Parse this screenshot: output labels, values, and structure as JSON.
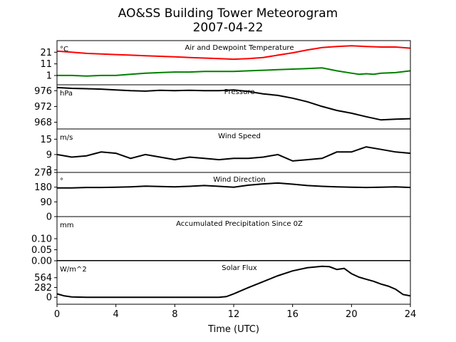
{
  "figure": {
    "title_line1": "AO&SS Building Tower Meteorogram",
    "title_line2": "2007-04-22",
    "xlabel": "Time (UTC)"
  },
  "chart_data": [
    {
      "type": "line",
      "title": "Air and Dewpoint Temperature",
      "unit": "°C",
      "ylim": [
        -7,
        31
      ],
      "yticks": [
        "1",
        "11",
        "21"
      ],
      "xlim": [
        0,
        24
      ],
      "series": [
        {
          "color": "#ff0000",
          "x": [
            0,
            1,
            2,
            3,
            4,
            5,
            6,
            7,
            8,
            9,
            10,
            11,
            12,
            13,
            14,
            15,
            16,
            17,
            18,
            19,
            20,
            21,
            22,
            23,
            24
          ],
          "y": [
            22,
            21,
            20,
            19.5,
            19,
            18.5,
            18,
            17.5,
            17,
            16.5,
            16,
            15.5,
            15,
            15.5,
            16.5,
            18.5,
            20.5,
            23,
            25,
            26,
            26.5,
            26,
            25.5,
            25.5,
            24.5
          ]
        },
        {
          "color": "#008000",
          "x": [
            0,
            1,
            2,
            3,
            4,
            5,
            6,
            7,
            8,
            9,
            10,
            11,
            12,
            13,
            14,
            15,
            16,
            17,
            18,
            19,
            20,
            20.5,
            21,
            21.5,
            22,
            23,
            24
          ],
          "y": [
            1,
            1,
            0.5,
            1,
            1,
            2,
            3,
            3.5,
            4,
            4,
            4.5,
            4.5,
            4.5,
            5,
            5.5,
            6,
            6.5,
            7,
            7.5,
            5,
            3,
            2,
            2.5,
            2,
            3,
            3.5,
            5
          ]
        }
      ]
    },
    {
      "type": "line",
      "title": "Pressure",
      "unit": "hPa",
      "ylim": [
        966.3,
        977.5
      ],
      "yticks": [
        "968",
        "972",
        "976"
      ],
      "xlim": [
        0,
        24
      ],
      "series": [
        {
          "color": "#000000",
          "x": [
            0,
            1,
            2,
            3,
            4,
            5,
            6,
            7,
            8,
            9,
            10,
            11,
            12,
            13,
            14,
            15,
            16,
            17,
            18,
            19,
            20,
            21,
            22,
            23,
            24
          ],
          "y": [
            976.8,
            976.6,
            976.5,
            976.4,
            976.2,
            976,
            975.9,
            976.1,
            976,
            976.1,
            976,
            976,
            976.2,
            975.8,
            975.2,
            974.8,
            974.1,
            973.2,
            972,
            971,
            970.3,
            969.4,
            968.6,
            968.8,
            968.9
          ]
        }
      ]
    },
    {
      "type": "line",
      "title": "Wind Speed",
      "unit": "m/s",
      "ylim": [
        2,
        19
      ],
      "yticks": [
        "3",
        "9",
        "15"
      ],
      "xlim": [
        0,
        24
      ],
      "series": [
        {
          "color": "#000000",
          "x": [
            0,
            1,
            2,
            3,
            4,
            5,
            6,
            7,
            8,
            9,
            10,
            11,
            12,
            13,
            14,
            15,
            16,
            17,
            18,
            19,
            20,
            21,
            22,
            23,
            24
          ],
          "y": [
            9,
            8,
            8.5,
            10,
            9.5,
            7.5,
            9,
            8,
            7,
            8,
            7.5,
            7,
            7.5,
            7.5,
            8,
            9,
            6.5,
            7,
            7.5,
            10,
            10,
            12,
            11,
            10,
            9.5
          ]
        }
      ]
    },
    {
      "type": "line",
      "title": "Wind Direction",
      "unit": "°",
      "ylim": [
        0,
        270
      ],
      "yticks": [
        "0",
        "90",
        "180",
        "270"
      ],
      "xlim": [
        0,
        24
      ],
      "series": [
        {
          "color": "#000000",
          "x": [
            0,
            1,
            2,
            3,
            4,
            5,
            6,
            7,
            8,
            9,
            10,
            11,
            12,
            13,
            14,
            15,
            16,
            17,
            18,
            19,
            20,
            21,
            22,
            23,
            24
          ],
          "y": [
            175,
            175,
            178,
            178,
            180,
            182,
            186,
            184,
            182,
            185,
            190,
            185,
            180,
            192,
            200,
            205,
            198,
            190,
            185,
            182,
            180,
            178,
            180,
            182,
            178
          ]
        }
      ]
    },
    {
      "type": "line",
      "title": "Accumulated Precipitation Since 0Z",
      "unit": "mm",
      "ylim": [
        0,
        0.2
      ],
      "yticks": [
        "0.00",
        "0.05",
        "0.10"
      ],
      "xlim": [
        0,
        24
      ],
      "series": [
        {
          "color": "#000000",
          "x": [
            0,
            24
          ],
          "y": [
            0,
            0
          ]
        }
      ]
    },
    {
      "type": "line",
      "title": "Solar Flux",
      "unit": "W/m^2",
      "ylim": [
        -200,
        1050
      ],
      "yticks": [
        "0",
        "282",
        "564"
      ],
      "xlim": [
        0,
        24
      ],
      "xticks": [
        "0",
        "4",
        "8",
        "12",
        "16",
        "20",
        "24"
      ],
      "series": [
        {
          "color": "#000000",
          "x": [
            0,
            0.5,
            1,
            2,
            4,
            6,
            8,
            10,
            11,
            11.5,
            12,
            13,
            14,
            15,
            16,
            17,
            18,
            18.5,
            19,
            19.5,
            20,
            20.5,
            21,
            21.5,
            22,
            22.5,
            23,
            23.5,
            24
          ],
          "y": [
            100,
            40,
            10,
            0,
            0,
            0,
            0,
            0,
            0,
            20,
            100,
            280,
            450,
            620,
            760,
            850,
            890,
            880,
            800,
            830,
            680,
            580,
            520,
            460,
            380,
            320,
            230,
            80,
            40
          ]
        }
      ]
    }
  ]
}
